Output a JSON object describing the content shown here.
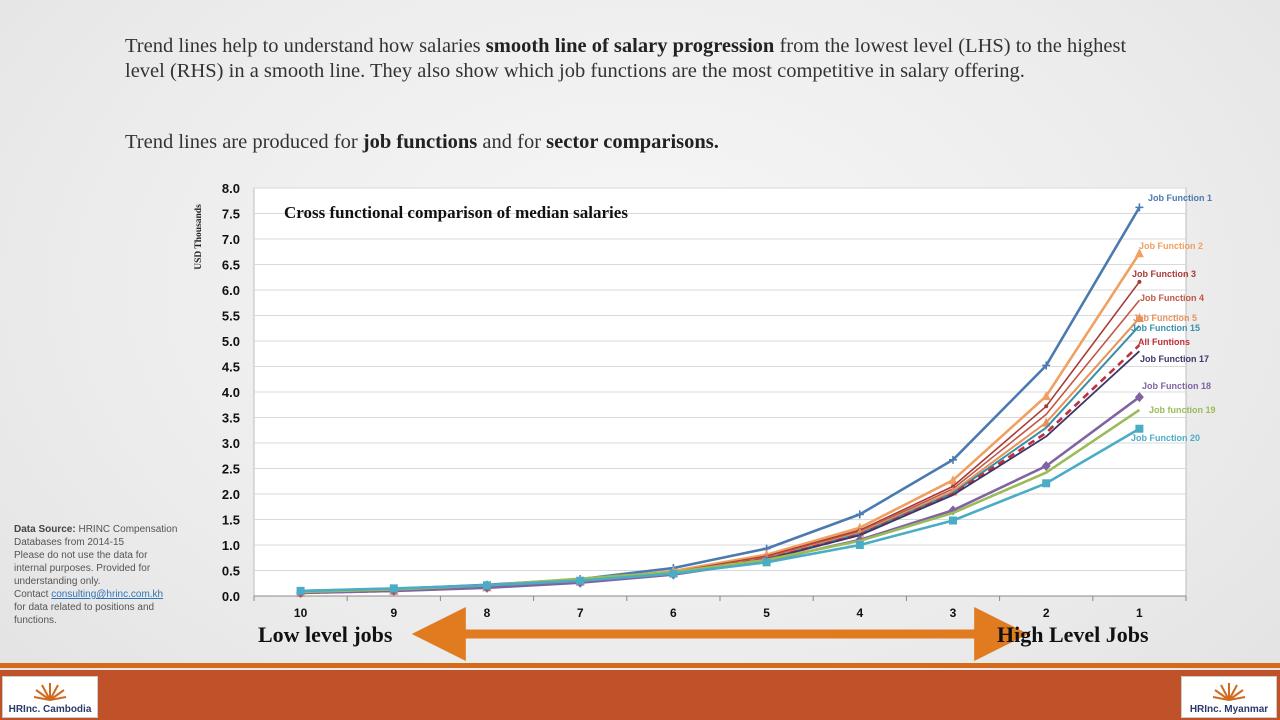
{
  "intro": {
    "p1_a": "Trend lines help to understand how salaries ",
    "p1_b": "smooth line of salary progression",
    "p1_c": " from the lowest level (LHS) to the highest level (RHS) in a smooth line.  They also show which job functions are the most competitive  in salary offering.",
    "p2_a": "Trend lines are produced for ",
    "p2_b": "job functions",
    "p2_c": "  and for ",
    "p2_d": "sector comparisons."
  },
  "data_source": {
    "label": "Data Source:",
    "text1": " HRINC Compensation Databases from 2014-15",
    "text2": "Please do not use the data for internal purposes.  Provided for understanding only.",
    "contact_prefix": "Contact ",
    "email": "consulting@hrinc.com.kh",
    "text3": "for data related to positions and functions."
  },
  "arrow": {
    "left_label": "Low level jobs",
    "right_label": "High Level Jobs",
    "color": "#e07b1f"
  },
  "logos": {
    "left": "HRInc. Cambodia",
    "right": "HRInc. Myanmar"
  },
  "colors": {
    "band": "#c0522a",
    "rule": "#d46a1c"
  },
  "chart_data": {
    "type": "line",
    "title": "Cross functional  comparison of median  salaries",
    "ylabel": "USD Thousands",
    "xlabel": "",
    "ylim": [
      0,
      8
    ],
    "ytick_step": 0.5,
    "grid": true,
    "categories": [
      "10",
      "9",
      "8",
      "7",
      "6",
      "5",
      "4",
      "3",
      "2",
      "1"
    ],
    "series": [
      {
        "name": "Job Function 1",
        "color": "#4a7ab0",
        "marker": "plus",
        "width": 2.6,
        "values": [
          0.1,
          0.14,
          0.22,
          0.33,
          0.55,
          0.93,
          1.6,
          2.67,
          4.52,
          7.62
        ]
      },
      {
        "name": "Job Function 2",
        "color": "#f0a060",
        "marker": "triangle",
        "width": 2.6,
        "values": [
          0.07,
          0.12,
          0.19,
          0.3,
          0.49,
          0.81,
          1.34,
          2.27,
          3.92,
          6.72
        ]
      },
      {
        "name": "Job Function 3",
        "color": "#a83a36",
        "marker": "dot",
        "width": 1.6,
        "values": [
          0.06,
          0.11,
          0.18,
          0.29,
          0.47,
          0.78,
          1.29,
          2.15,
          3.72,
          6.16
        ]
      },
      {
        "name": "Job Function 4",
        "color": "#c05846",
        "marker": "none",
        "width": 1.6,
        "values": [
          0.06,
          0.11,
          0.18,
          0.28,
          0.46,
          0.76,
          1.26,
          2.1,
          3.56,
          5.8
        ]
      },
      {
        "name": "Job Function 5",
        "color": "#e8925a",
        "marker": "triangle",
        "width": 2.0,
        "values": [
          0.06,
          0.1,
          0.17,
          0.28,
          0.45,
          0.74,
          1.24,
          2.05,
          3.4,
          5.45
        ]
      },
      {
        "name": "Job Function 15",
        "color": "#3a8fa8",
        "marker": "none",
        "width": 2.0,
        "values": [
          0.06,
          0.1,
          0.17,
          0.28,
          0.45,
          0.73,
          1.22,
          2.02,
          3.3,
          5.3
        ]
      },
      {
        "name": "All Funtions",
        "color": "#c0303a",
        "marker": "none",
        "width": 2.6,
        "dash": "7,5",
        "values": [
          0.06,
          0.1,
          0.17,
          0.27,
          0.45,
          0.73,
          1.2,
          2.0,
          3.2,
          4.92
        ]
      },
      {
        "name": "Job Function 17",
        "color": "#3f3568",
        "marker": "none",
        "width": 1.8,
        "values": [
          0.06,
          0.1,
          0.17,
          0.27,
          0.44,
          0.72,
          1.19,
          1.98,
          3.13,
          4.8
        ]
      },
      {
        "name": "Job Function 18",
        "color": "#8064a2",
        "marker": "diamond",
        "width": 2.6,
        "values": [
          0.06,
          0.1,
          0.16,
          0.26,
          0.42,
          0.69,
          1.1,
          1.68,
          2.55,
          3.9
        ]
      },
      {
        "name": "Job function 19",
        "color": "#9bbb59",
        "marker": "none",
        "width": 2.6,
        "values": [
          0.08,
          0.13,
          0.21,
          0.34,
          0.47,
          0.71,
          1.08,
          1.63,
          2.42,
          3.65
        ]
      },
      {
        "name": "Job Function 20",
        "color": "#4bacc6",
        "marker": "square",
        "width": 2.6,
        "values": [
          0.1,
          0.15,
          0.21,
          0.3,
          0.44,
          0.66,
          1.0,
          1.48,
          2.21,
          3.28
        ]
      }
    ]
  }
}
